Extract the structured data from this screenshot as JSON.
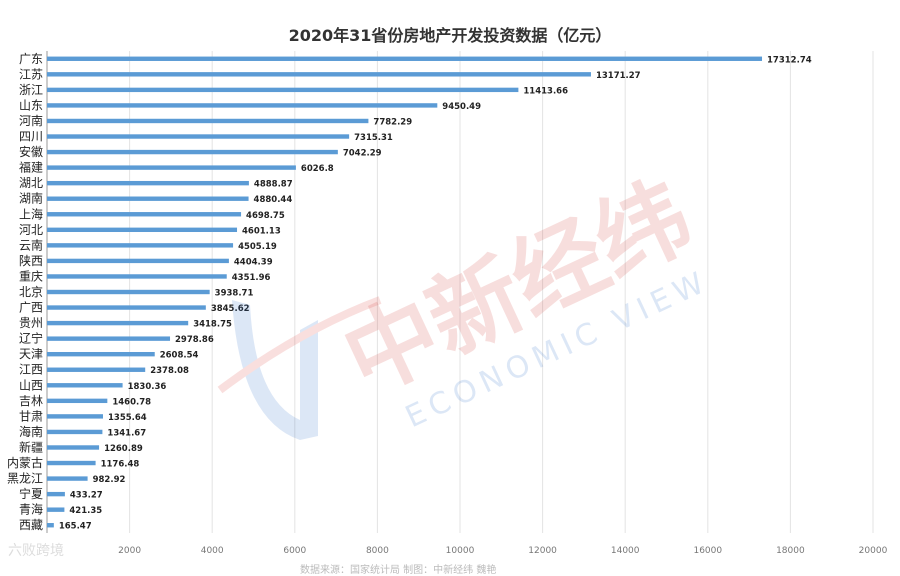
{
  "chart_data": {
    "type": "bar",
    "orientation": "horizontal",
    "title": "2020年31省份房地产开发投资数据（亿元）",
    "categories": [
      "广东",
      "江苏",
      "浙江",
      "山东",
      "河南",
      "四川",
      "安徽",
      "福建",
      "湖北",
      "湖南",
      "上海",
      "河北",
      "云南",
      "陕西",
      "重庆",
      "北京",
      "广西",
      "贵州",
      "辽宁",
      "天津",
      "江西",
      "山西",
      "吉林",
      "甘肃",
      "海南",
      "新疆",
      "内蒙古",
      "黑龙江",
      "宁夏",
      "青海",
      "西藏"
    ],
    "values": [
      17312.74,
      13171.27,
      11413.66,
      9450.49,
      7782.29,
      7315.31,
      7042.29,
      6026.8,
      4888.87,
      4880.44,
      4698.75,
      4601.13,
      4505.19,
      4404.39,
      4351.96,
      3938.71,
      3845.62,
      3418.75,
      2978.86,
      2608.54,
      2378.08,
      1830.36,
      1460.78,
      1355.64,
      1341.67,
      1260.89,
      1176.48,
      982.92,
      433.27,
      421.35,
      165.47
    ],
    "value_labels": [
      "17312.74",
      "13171.27",
      "11413.66",
      "9450.49",
      "7782.29",
      "7315.31",
      "7042.29",
      "6026.8",
      "4888.87",
      "4880.44",
      "4698.75",
      "4601.13",
      "4505.19",
      "4404.39",
      "4351.96",
      "3938.71",
      "3845.62",
      "3418.75",
      "2978.86",
      "2608.54",
      "2378.08",
      "1830.36",
      "1460.78",
      "1355.64",
      "1341.67",
      "1260.89",
      "1176.48",
      "982.92",
      "433.27",
      "421.35",
      "165.47"
    ],
    "xlim": [
      0,
      20000
    ],
    "xticks": [
      "2000",
      "4000",
      "6000",
      "8000",
      "10000",
      "12000",
      "14000",
      "16000",
      "18000",
      "20000"
    ],
    "grid": true,
    "bar_color": "#5b9bd5"
  },
  "watermark": {
    "brand": "中新经纬",
    "sub": "ECONOMIC VIEW",
    "corner": "六败跨境"
  },
  "footer_note": "数据来源：国家统计局 制图：中新经纬 魏艳"
}
